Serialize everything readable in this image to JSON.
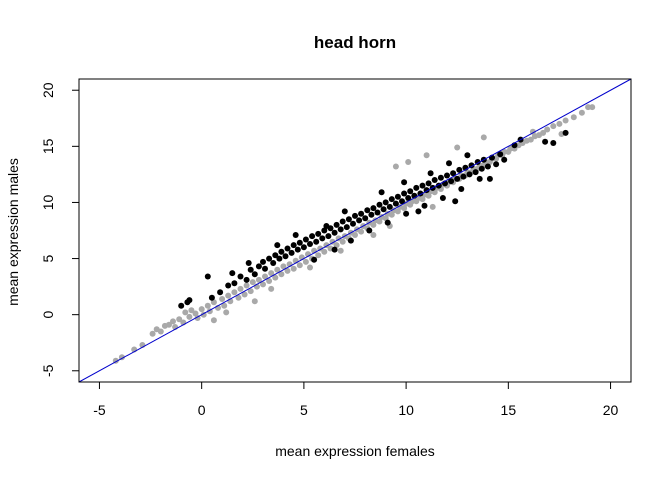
{
  "chart_data": {
    "type": "scatter",
    "title": "head horn",
    "xlabel": "mean expression females",
    "ylabel": "mean expression males",
    "xlim": [
      -6,
      21
    ],
    "ylim": [
      -6,
      21
    ],
    "x_ticks": [
      -5,
      0,
      5,
      10,
      15,
      20
    ],
    "y_ticks": [
      -5,
      0,
      5,
      10,
      15,
      20
    ],
    "x_tick_labels": [
      "-5",
      "0",
      "5",
      "10",
      "15",
      "20"
    ],
    "y_tick_labels": [
      "-5",
      "0",
      "5",
      "10",
      "15",
      "20"
    ],
    "grid": false,
    "reference_line": {
      "slope": 1,
      "intercept": 0,
      "color": "#0000cc"
    },
    "series": [
      {
        "color": "#a9a9a9",
        "points": [
          [
            -4.2,
            -4.1
          ],
          [
            -3.9,
            -3.8
          ],
          [
            -3.3,
            -3.1
          ],
          [
            -2.9,
            -2.7
          ],
          [
            -2.4,
            -1.7
          ],
          [
            -2.2,
            -1.3
          ],
          [
            -2.0,
            -1.5
          ],
          [
            -1.8,
            -1.0
          ],
          [
            -1.6,
            -0.9
          ],
          [
            -1.4,
            -0.6
          ],
          [
            -1.3,
            -1.1
          ],
          [
            -1.1,
            -0.4
          ],
          [
            -0.9,
            -0.7
          ],
          [
            -0.8,
            0.2
          ],
          [
            -0.6,
            -0.2
          ],
          [
            -0.5,
            0.4
          ],
          [
            -0.3,
            0.1
          ],
          [
            -0.2,
            -0.3
          ],
          [
            0.0,
            0.5
          ],
          [
            0.1,
            0.0
          ],
          [
            0.3,
            0.8
          ],
          [
            0.4,
            0.3
          ],
          [
            0.6,
            1.1
          ],
          [
            0.8,
            0.6
          ],
          [
            1.0,
            1.4
          ],
          [
            1.1,
            0.8
          ],
          [
            1.3,
            1.7
          ],
          [
            1.4,
            1.2
          ],
          [
            1.6,
            2.0
          ],
          [
            1.8,
            1.5
          ],
          [
            1.9,
            2.3
          ],
          [
            2.1,
            1.8
          ],
          [
            2.2,
            2.6
          ],
          [
            2.4,
            2.1
          ],
          [
            2.5,
            2.9
          ],
          [
            2.7,
            2.5
          ],
          [
            2.8,
            3.1
          ],
          [
            3.0,
            2.7
          ],
          [
            3.1,
            3.4
          ],
          [
            3.3,
            3.0
          ],
          [
            3.4,
            3.7
          ],
          [
            3.6,
            3.3
          ],
          [
            3.7,
            4.0
          ],
          [
            3.9,
            3.6
          ],
          [
            4.0,
            4.3
          ],
          [
            4.2,
            3.9
          ],
          [
            4.3,
            4.5
          ],
          [
            4.5,
            4.1
          ],
          [
            4.6,
            4.8
          ],
          [
            4.8,
            4.4
          ],
          [
            4.9,
            5.1
          ],
          [
            5.1,
            4.7
          ],
          [
            5.2,
            5.4
          ],
          [
            5.4,
            5.0
          ],
          [
            5.5,
            5.7
          ],
          [
            5.7,
            5.3
          ],
          [
            5.8,
            5.9
          ],
          [
            6.0,
            5.6
          ],
          [
            6.1,
            6.2
          ],
          [
            6.3,
            5.9
          ],
          [
            6.4,
            6.5
          ],
          [
            6.6,
            6.2
          ],
          [
            6.7,
            6.8
          ],
          [
            6.9,
            6.5
          ],
          [
            7.0,
            7.0
          ],
          [
            7.2,
            6.8
          ],
          [
            7.3,
            7.3
          ],
          [
            7.5,
            7.1
          ],
          [
            7.6,
            7.6
          ],
          [
            7.8,
            7.4
          ],
          [
            7.9,
            7.9
          ],
          [
            8.1,
            7.7
          ],
          [
            8.2,
            8.2
          ],
          [
            8.4,
            8.0
          ],
          [
            8.5,
            8.4
          ],
          [
            8.7,
            8.3
          ],
          [
            8.8,
            8.7
          ],
          [
            9.0,
            8.6
          ],
          [
            9.1,
            9.0
          ],
          [
            9.3,
            8.9
          ],
          [
            9.4,
            9.3
          ],
          [
            9.6,
            9.2
          ],
          [
            9.7,
            9.6
          ],
          [
            9.9,
            9.5
          ],
          [
            10.0,
            9.9
          ],
          [
            10.2,
            9.8
          ],
          [
            10.3,
            10.1
          ],
          [
            10.5,
            10.1
          ],
          [
            10.6,
            10.4
          ],
          [
            10.8,
            10.3
          ],
          [
            10.9,
            10.7
          ],
          [
            11.1,
            10.6
          ],
          [
            11.2,
            11.0
          ],
          [
            11.4,
            10.9
          ],
          [
            11.5,
            11.3
          ],
          [
            11.7,
            11.2
          ],
          [
            11.8,
            11.6
          ],
          [
            12.0,
            11.5
          ],
          [
            12.1,
            11.8
          ],
          [
            12.3,
            11.8
          ],
          [
            12.4,
            12.1
          ],
          [
            12.6,
            12.1
          ],
          [
            12.7,
            12.4
          ],
          [
            12.9,
            12.4
          ],
          [
            13.0,
            12.7
          ],
          [
            13.2,
            12.7
          ],
          [
            13.3,
            13.0
          ],
          [
            13.5,
            13.0
          ],
          [
            13.6,
            13.3
          ],
          [
            13.8,
            13.3
          ],
          [
            13.9,
            13.6
          ],
          [
            14.1,
            13.6
          ],
          [
            14.2,
            13.9
          ],
          [
            14.4,
            13.9
          ],
          [
            14.5,
            14.2
          ],
          [
            14.7,
            14.2
          ],
          [
            14.8,
            14.5
          ],
          [
            15.0,
            14.5
          ],
          [
            15.1,
            14.8
          ],
          [
            15.3,
            14.8
          ],
          [
            15.5,
            15.1
          ],
          [
            15.7,
            15.3
          ],
          [
            15.9,
            15.5
          ],
          [
            16.1,
            15.6
          ],
          [
            16.3,
            15.9
          ],
          [
            16.5,
            16.0
          ],
          [
            16.7,
            16.2
          ],
          [
            16.9,
            16.5
          ],
          [
            17.2,
            16.8
          ],
          [
            17.5,
            17.0
          ],
          [
            17.8,
            17.3
          ],
          [
            18.2,
            17.6
          ],
          [
            18.6,
            18.0
          ],
          [
            18.9,
            18.5
          ],
          [
            19.1,
            18.5
          ],
          [
            9.5,
            13.2
          ],
          [
            10.1,
            13.6
          ],
          [
            11.0,
            14.2
          ],
          [
            12.5,
            14.9
          ],
          [
            13.8,
            15.8
          ],
          [
            16.2,
            16.3
          ],
          [
            17.6,
            16.1
          ],
          [
            3.4,
            2.3
          ],
          [
            5.3,
            4.2
          ],
          [
            6.8,
            5.7
          ],
          [
            8.4,
            7.1
          ],
          [
            9.2,
            7.9
          ],
          [
            11.3,
            9.6
          ],
          [
            2.6,
            1.2
          ],
          [
            1.2,
            0.2
          ],
          [
            0.6,
            -0.5
          ]
        ]
      },
      {
        "color": "#000000",
        "points": [
          [
            -1.0,
            0.8
          ],
          [
            -0.7,
            1.1
          ],
          [
            -0.6,
            1.3
          ],
          [
            0.5,
            1.5
          ],
          [
            0.9,
            2.0
          ],
          [
            1.3,
            2.6
          ],
          [
            1.6,
            2.8
          ],
          [
            1.9,
            3.4
          ],
          [
            2.2,
            3.1
          ],
          [
            2.4,
            4.0
          ],
          [
            2.6,
            3.6
          ],
          [
            2.8,
            4.3
          ],
          [
            3.0,
            4.7
          ],
          [
            3.1,
            4.1
          ],
          [
            3.3,
            5.0
          ],
          [
            3.5,
            4.6
          ],
          [
            3.6,
            5.3
          ],
          [
            3.8,
            5.0
          ],
          [
            3.9,
            5.6
          ],
          [
            4.1,
            5.2
          ],
          [
            4.2,
            5.9
          ],
          [
            4.4,
            5.5
          ],
          [
            4.5,
            6.2
          ],
          [
            4.7,
            5.8
          ],
          [
            4.8,
            6.4
          ],
          [
            5.0,
            6.0
          ],
          [
            5.1,
            6.7
          ],
          [
            5.3,
            6.3
          ],
          [
            5.4,
            7.0
          ],
          [
            5.6,
            6.5
          ],
          [
            5.7,
            7.2
          ],
          [
            5.9,
            6.8
          ],
          [
            6.0,
            7.5
          ],
          [
            6.2,
            7.0
          ],
          [
            6.3,
            7.7
          ],
          [
            6.5,
            7.3
          ],
          [
            6.6,
            8.0
          ],
          [
            6.8,
            7.6
          ],
          [
            6.9,
            8.3
          ],
          [
            7.1,
            7.8
          ],
          [
            7.2,
            8.5
          ],
          [
            7.4,
            8.1
          ],
          [
            7.5,
            8.8
          ],
          [
            7.7,
            8.4
          ],
          [
            7.8,
            9.0
          ],
          [
            8.0,
            8.6
          ],
          [
            8.1,
            9.3
          ],
          [
            8.3,
            8.9
          ],
          [
            8.4,
            9.5
          ],
          [
            8.6,
            9.1
          ],
          [
            8.7,
            9.8
          ],
          [
            8.9,
            9.4
          ],
          [
            9.0,
            10.0
          ],
          [
            9.2,
            9.6
          ],
          [
            9.3,
            10.3
          ],
          [
            9.5,
            9.9
          ],
          [
            9.6,
            10.5
          ],
          [
            9.8,
            10.1
          ],
          [
            9.9,
            10.8
          ],
          [
            10.1,
            10.4
          ],
          [
            10.2,
            11.0
          ],
          [
            10.4,
            10.6
          ],
          [
            10.5,
            11.3
          ],
          [
            10.7,
            10.8
          ],
          [
            10.8,
            11.5
          ],
          [
            11.0,
            11.1
          ],
          [
            11.1,
            11.7
          ],
          [
            11.3,
            11.3
          ],
          [
            11.4,
            12.0
          ],
          [
            11.6,
            11.5
          ],
          [
            11.7,
            12.2
          ],
          [
            11.9,
            11.7
          ],
          [
            12.0,
            12.4
          ],
          [
            12.2,
            11.9
          ],
          [
            12.3,
            12.6
          ],
          [
            12.5,
            12.1
          ],
          [
            12.6,
            12.9
          ],
          [
            12.8,
            12.3
          ],
          [
            12.9,
            13.1
          ],
          [
            13.1,
            12.5
          ],
          [
            13.2,
            13.3
          ],
          [
            13.4,
            12.7
          ],
          [
            13.5,
            13.6
          ],
          [
            13.7,
            13.0
          ],
          [
            13.8,
            13.8
          ],
          [
            14.0,
            13.2
          ],
          [
            14.2,
            14.0
          ],
          [
            14.4,
            13.4
          ],
          [
            14.6,
            14.3
          ],
          [
            14.8,
            13.8
          ],
          [
            5.5,
            4.9
          ],
          [
            6.5,
            5.8
          ],
          [
            7.3,
            6.6
          ],
          [
            8.2,
            7.5
          ],
          [
            9.1,
            8.2
          ],
          [
            10.0,
            9.0
          ],
          [
            10.9,
            9.7
          ],
          [
            11.8,
            10.4
          ],
          [
            12.7,
            11.2
          ],
          [
            13.6,
            12.1
          ],
          [
            6.1,
            7.9
          ],
          [
            7.0,
            9.2
          ],
          [
            8.8,
            10.9
          ],
          [
            9.9,
            11.8
          ],
          [
            11.2,
            12.6
          ],
          [
            12.1,
            13.5
          ],
          [
            13.0,
            14.2
          ],
          [
            3.7,
            6.2
          ],
          [
            4.6,
            7.1
          ],
          [
            2.3,
            4.6
          ],
          [
            1.5,
            3.7
          ],
          [
            0.3,
            3.4
          ],
          [
            15.3,
            15.1
          ],
          [
            15.6,
            15.6
          ],
          [
            16.8,
            15.4
          ],
          [
            17.2,
            15.3
          ],
          [
            17.8,
            16.2
          ],
          [
            14.1,
            12.1
          ],
          [
            12.4,
            10.1
          ],
          [
            10.6,
            9.2
          ]
        ]
      }
    ]
  }
}
